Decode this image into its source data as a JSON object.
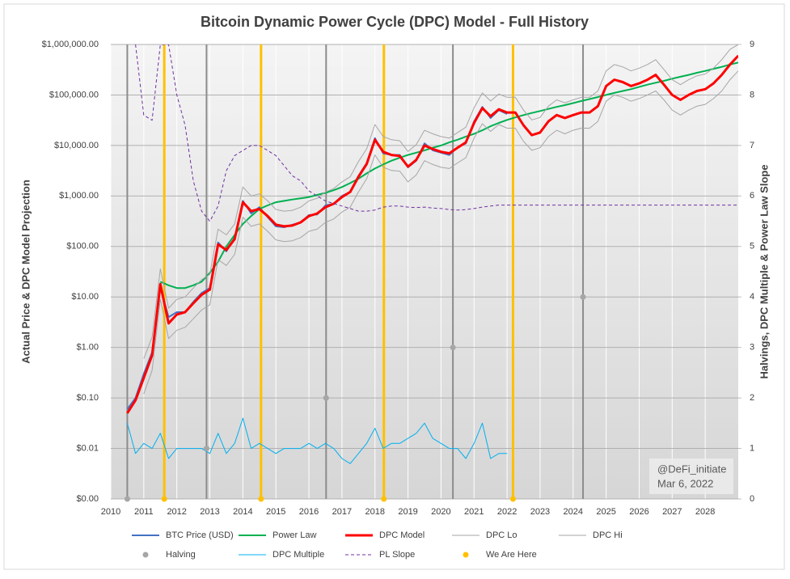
{
  "chart_data": {
    "type": "line",
    "title": "Bitcoin Dynamic Power Cycle (DPC) Model - Full History",
    "y_label": "Actual Price & DPC Model Projection",
    "y2_label": "Halvings, DPC Multiple & Power Law Slope",
    "annotations": [
      "@DeFi_initiate",
      "Mar 6, 2022"
    ],
    "ylog": true,
    "grid": true,
    "legend": "bottom",
    "xlim": [
      2010,
      2029
    ],
    "xticks": [
      2010,
      2011,
      2012,
      2013,
      2014,
      2015,
      2016,
      2017,
      2018,
      2019,
      2020,
      2021,
      2022,
      2023,
      2024,
      2025,
      2026,
      2027,
      2028
    ],
    "ylim": [
      0.001,
      1000000
    ],
    "yticks": [
      {
        "value": 0.001,
        "label": "$0.00"
      },
      {
        "value": 0.01,
        "label": "$0.01"
      },
      {
        "value": 0.1,
        "label": "$0.10"
      },
      {
        "value": 1,
        "label": "$1.00"
      },
      {
        "value": 10,
        "label": "$10.00"
      },
      {
        "value": 100,
        "label": "$100.00"
      },
      {
        "value": 1000,
        "label": "$1,000.00"
      },
      {
        "value": 10000,
        "label": "$10,000.00"
      },
      {
        "value": 100000,
        "label": "$100,000.00"
      },
      {
        "value": 1000000,
        "label": "$1,000,000.00"
      }
    ],
    "y2lim": [
      0,
      9
    ],
    "y2ticks": [
      0,
      1,
      2,
      3,
      4,
      5,
      6,
      7,
      8,
      9
    ],
    "x": [
      2010.5,
      2010.75,
      2011,
      2011.25,
      2011.5,
      2011.75,
      2012,
      2012.25,
      2012.5,
      2012.75,
      2013,
      2013.25,
      2013.5,
      2013.75,
      2014,
      2014.25,
      2014.5,
      2014.75,
      2015,
      2015.25,
      2015.5,
      2015.75,
      2016,
      2016.25,
      2016.5,
      2016.75,
      2017,
      2017.25,
      2017.5,
      2017.75,
      2018,
      2018.25,
      2018.5,
      2018.75,
      2019,
      2019.25,
      2019.5,
      2019.75,
      2020,
      2020.25,
      2020.5,
      2020.75,
      2021,
      2021.25,
      2021.5,
      2021.75,
      2022,
      2022.25,
      2022.5,
      2022.75,
      2023,
      2023.25,
      2023.5,
      2023.75,
      2024,
      2024.25,
      2024.5,
      2024.75,
      2025,
      2025.25,
      2025.5,
      2025.75,
      2026,
      2026.25,
      2026.5,
      2026.75,
      2027,
      2027.25,
      2027.5,
      2027.75,
      2028,
      2028.25,
      2028.5,
      2028.75,
      2029
    ],
    "series": [
      {
        "name": "BTC Price (USD)",
        "kind": "line",
        "color": "#4472c4",
        "width": 2,
        "values": [
          0.06,
          0.1,
          0.3,
          0.8,
          15,
          4,
          5,
          5,
          8,
          12,
          15,
          120,
          80,
          150,
          800,
          450,
          600,
          380,
          250,
          240,
          270,
          300,
          420,
          430,
          650,
          700,
          1000,
          1200,
          2500,
          4500,
          14000,
          7000,
          6500,
          6500,
          3700,
          5000,
          11000,
          8000,
          7200,
          6500,
          9200,
          11000,
          30000,
          58000,
          35000,
          50000,
          42000,
          null,
          null,
          null,
          null,
          null,
          null,
          null,
          null,
          null,
          null,
          null,
          null,
          null,
          null,
          null,
          null,
          null,
          null,
          null,
          null,
          null,
          null,
          null,
          null,
          null,
          null,
          null,
          null
        ]
      },
      {
        "name": "Power Law",
        "kind": "line",
        "color": "#00b050",
        "width": 2,
        "values": [
          null,
          null,
          null,
          null,
          20,
          17,
          15,
          15,
          17,
          20,
          30,
          50,
          100,
          170,
          280,
          400,
          550,
          650,
          750,
          800,
          850,
          900,
          950,
          1050,
          1150,
          1300,
          1500,
          1800,
          2200,
          2800,
          3500,
          4200,
          5000,
          5700,
          6500,
          7200,
          8000,
          9000,
          10000,
          11500,
          13000,
          15000,
          17000,
          20000,
          24000,
          28000,
          32000,
          36000,
          40000,
          44000,
          48000,
          53000,
          58000,
          63000,
          69000,
          76000,
          83000,
          91000,
          100000,
          110000,
          120000,
          130000,
          145000,
          160000,
          175000,
          190000,
          210000,
          230000,
          250000,
          275000,
          300000,
          330000,
          360000,
          400000,
          440000
        ]
      },
      {
        "name": "DPC Model",
        "kind": "line",
        "color": "#ff0000",
        "width": 3,
        "values": [
          0.05,
          0.09,
          0.25,
          0.7,
          18,
          3,
          4.5,
          5,
          7.5,
          11,
          14,
          110,
          85,
          140,
          750,
          500,
          550,
          400,
          270,
          250,
          260,
          300,
          400,
          450,
          600,
          700,
          950,
          1200,
          2400,
          4300,
          13000,
          7500,
          6500,
          6200,
          3800,
          5200,
          10000,
          8500,
          7500,
          7000,
          9000,
          11500,
          28000,
          55000,
          38000,
          52000,
          45000,
          45000,
          25000,
          16000,
          18000,
          30000,
          40000,
          35000,
          40000,
          45000,
          45000,
          60000,
          150000,
          200000,
          180000,
          150000,
          170000,
          200000,
          250000,
          160000,
          100000,
          80000,
          100000,
          120000,
          130000,
          170000,
          250000,
          400000,
          600000
        ]
      },
      {
        "name": "DPC Lo",
        "kind": "line",
        "color": "#a6a6a6",
        "width": 1,
        "values": [
          null,
          null,
          0.12,
          0.35,
          9,
          1.5,
          2.2,
          2.5,
          3.7,
          5.5,
          7,
          55,
          42,
          70,
          380,
          250,
          280,
          200,
          135,
          125,
          130,
          150,
          200,
          220,
          300,
          350,
          480,
          600,
          1200,
          2200,
          6500,
          3700,
          3200,
          3100,
          1900,
          2600,
          5000,
          4200,
          3700,
          3500,
          4500,
          5700,
          14000,
          27000,
          19000,
          26000,
          22000,
          22000,
          12000,
          8000,
          9000,
          15000,
          20000,
          17000,
          20000,
          22000,
          22000,
          30000,
          75000,
          100000,
          90000,
          75000,
          85000,
          100000,
          120000,
          80000,
          50000,
          40000,
          50000,
          60000,
          65000,
          85000,
          120000,
          200000,
          300000
        ]
      },
      {
        "name": "DPC Hi",
        "kind": "line",
        "color": "#a6a6a6",
        "width": 1,
        "values": [
          null,
          null,
          0.6,
          1.6,
          36,
          6,
          9,
          10,
          15,
          22,
          28,
          220,
          170,
          280,
          1500,
          1000,
          1100,
          800,
          540,
          500,
          520,
          600,
          800,
          900,
          1200,
          1400,
          1900,
          2400,
          4800,
          8600,
          26000,
          15000,
          13000,
          12400,
          7600,
          10400,
          20000,
          17000,
          15000,
          14000,
          18000,
          23000,
          56000,
          110000,
          76000,
          104000,
          90000,
          90000,
          50000,
          32000,
          36000,
          60000,
          80000,
          70000,
          80000,
          90000,
          90000,
          120000,
          300000,
          400000,
          360000,
          300000,
          340000,
          400000,
          500000,
          320000,
          200000,
          160000,
          200000,
          240000,
          260000,
          340000,
          500000,
          800000,
          1000000
        ]
      },
      {
        "name": "Halving",
        "kind": "scatter",
        "axis": "y2",
        "color": "#a6a6a6",
        "vlines": true,
        "vline_color": "#8c8c8c",
        "x": [
          2010.5,
          2012.9,
          2016.52,
          2020.36,
          2024.3
        ],
        "values": [
          0,
          1,
          2,
          3,
          4
        ]
      },
      {
        "name": "DPC Multiple",
        "kind": "line",
        "axis": "y2",
        "color": "#00b0f0",
        "width": 1,
        "values": [
          1.5,
          0.9,
          1.1,
          1.0,
          1.3,
          0.8,
          1.0,
          1.0,
          1.0,
          1.0,
          0.9,
          1.3,
          0.9,
          1.1,
          1.6,
          1.0,
          1.1,
          1.0,
          0.9,
          1.0,
          1.0,
          1.0,
          1.1,
          1.0,
          1.1,
          1.0,
          0.8,
          0.7,
          0.9,
          1.1,
          1.4,
          1.0,
          1.1,
          1.1,
          1.2,
          1.3,
          1.5,
          1.2,
          1.1,
          1.0,
          1.0,
          0.8,
          1.1,
          1.5,
          0.8,
          0.9,
          0.9,
          null,
          null,
          null,
          null,
          null,
          null,
          null,
          null,
          null,
          null,
          null,
          null,
          null,
          null,
          null,
          null,
          null,
          null,
          null,
          null,
          null,
          null,
          null,
          null,
          null,
          null,
          null,
          null
        ]
      },
      {
        "name": "PL Slope",
        "kind": "line",
        "axis": "y2",
        "color": "#7030a0",
        "width": 1,
        "dash": true,
        "values": [
          null,
          9,
          7.6,
          7.5,
          9,
          9,
          8,
          7.4,
          6.3,
          5.7,
          5.5,
          5.8,
          6.5,
          6.8,
          6.9,
          7.0,
          7.0,
          6.9,
          6.8,
          6.6,
          6.4,
          6.3,
          6.1,
          6.0,
          5.9,
          5.85,
          5.8,
          5.75,
          5.7,
          5.7,
          5.72,
          5.78,
          5.8,
          5.8,
          5.78,
          5.77,
          5.78,
          5.76,
          5.75,
          5.73,
          5.72,
          5.73,
          5.75,
          5.78,
          5.8,
          5.82,
          5.82,
          5.82,
          5.82,
          5.82,
          5.82,
          5.82,
          5.82,
          5.82,
          5.82,
          5.82,
          5.82,
          5.82,
          5.82,
          5.82,
          5.82,
          5.82,
          5.82,
          5.82,
          5.82,
          5.82,
          5.82,
          5.82,
          5.82,
          5.82,
          5.82,
          5.82,
          5.82,
          5.82,
          5.82
        ]
      },
      {
        "name": "We Are Here",
        "kind": "scatter",
        "axis": "y2",
        "color": "#ffc000",
        "vlines": true,
        "vline_color": "#ffc000",
        "x": [
          2011.62,
          2014.55,
          2018.27,
          2022.18
        ],
        "values": [
          0,
          0,
          0,
          0
        ]
      }
    ]
  }
}
